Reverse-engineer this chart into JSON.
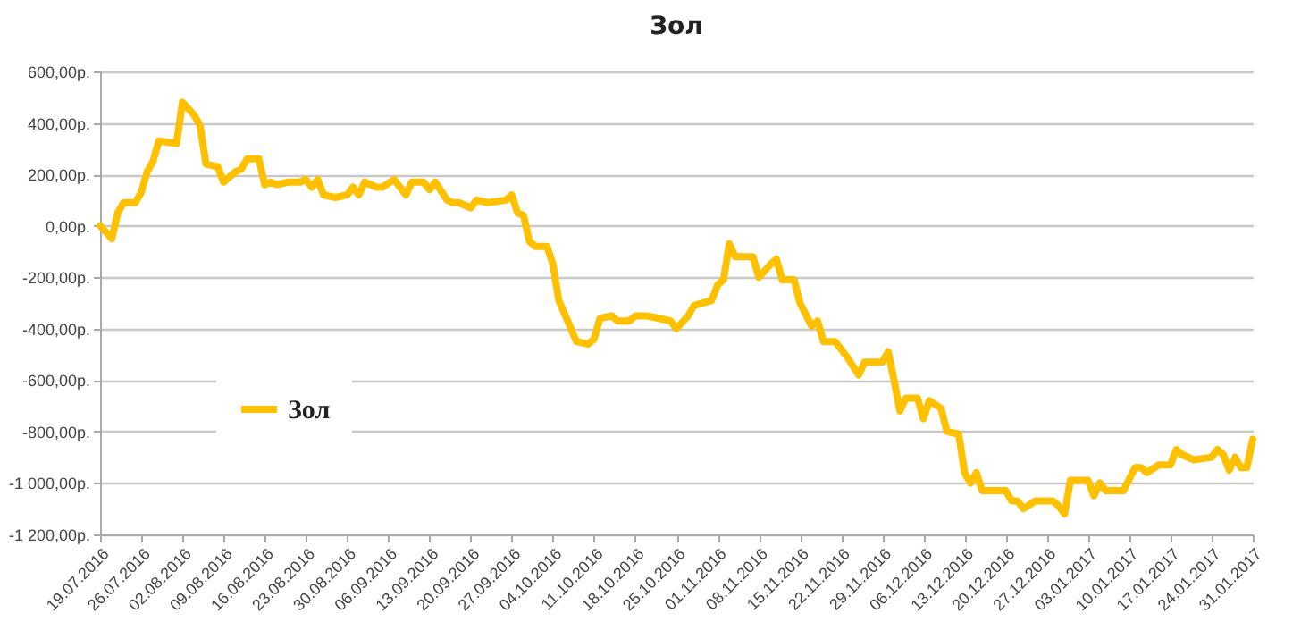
{
  "chart_data": {
    "type": "line",
    "title": "Зол",
    "legend": "left",
    "grid": "y",
    "marker": "none",
    "line_style": "solid",
    "x": [
      "2016-07-19",
      "2016-07-21",
      "2016-07-22",
      "2016-07-23",
      "2016-07-25",
      "2016-07-26",
      "2016-07-27",
      "2016-07-28",
      "2016-07-29",
      "2016-08-01",
      "2016-08-02",
      "2016-08-04",
      "2016-08-05",
      "2016-08-06",
      "2016-08-08",
      "2016-08-09",
      "2016-08-11",
      "2016-08-12",
      "2016-08-13",
      "2016-08-15",
      "2016-08-16",
      "2016-08-17",
      "2016-08-18",
      "2016-08-20",
      "2016-08-22",
      "2016-08-23",
      "2016-08-24",
      "2016-08-25",
      "2016-08-26",
      "2016-08-28",
      "2016-08-30",
      "2016-08-31",
      "2016-09-01",
      "2016-09-02",
      "2016-09-04",
      "2016-09-05",
      "2016-09-07",
      "2016-09-09",
      "2016-09-10",
      "2016-09-12",
      "2016-09-13",
      "2016-09-14",
      "2016-09-16",
      "2016-09-17",
      "2016-09-18",
      "2016-09-20",
      "2016-09-21",
      "2016-09-23",
      "2016-09-26",
      "2016-09-27",
      "2016-09-28",
      "2016-09-29",
      "2016-09-30",
      "2016-10-01",
      "2016-10-03",
      "2016-10-04",
      "2016-10-05",
      "2016-10-08",
      "2016-10-10",
      "2016-10-11",
      "2016-10-12",
      "2016-10-14",
      "2016-10-15",
      "2016-10-17",
      "2016-10-18",
      "2016-10-20",
      "2016-10-22",
      "2016-10-24",
      "2016-10-25",
      "2016-10-27",
      "2016-10-28",
      "2016-10-31",
      "2016-11-01",
      "2016-11-02",
      "2016-11-03",
      "2016-11-04",
      "2016-11-07",
      "2016-11-08",
      "2016-11-10",
      "2016-11-11",
      "2016-11-12",
      "2016-11-14",
      "2016-11-15",
      "2016-11-17",
      "2016-11-18",
      "2016-11-19",
      "2016-11-21",
      "2016-11-23",
      "2016-11-25",
      "2016-11-26",
      "2016-11-29",
      "2016-11-30",
      "2016-12-01",
      "2016-12-02",
      "2016-12-03",
      "2016-12-05",
      "2016-12-06",
      "2016-12-07",
      "2016-12-09",
      "2016-12-10",
      "2016-12-12",
      "2016-12-13",
      "2016-12-14",
      "2016-12-15",
      "2016-12-16",
      "2016-12-20",
      "2016-12-21",
      "2016-12-22",
      "2016-12-23",
      "2016-12-25",
      "2016-12-28",
      "2016-12-29",
      "2016-12-30",
      "2016-12-31",
      "2017-01-03",
      "2017-01-04",
      "2017-01-05",
      "2017-01-06",
      "2017-01-09",
      "2017-01-11",
      "2017-01-12",
      "2017-01-13",
      "2017-01-15",
      "2017-01-17",
      "2017-01-18",
      "2017-01-19",
      "2017-01-21",
      "2017-01-24",
      "2017-01-25",
      "2017-01-26",
      "2017-01-27",
      "2017-01-28",
      "2017-01-29",
      "2017-01-30",
      "2017-01-31"
    ],
    "series": [
      {
        "name": "Зол",
        "color": "#ffc000",
        "values": [
          0,
          -50,
          50,
          90,
          90,
          130,
          210,
          250,
          330,
          320,
          480,
          430,
          390,
          240,
          230,
          170,
          210,
          220,
          260,
          260,
          160,
          170,
          160,
          170,
          170,
          180,
          150,
          180,
          120,
          110,
          120,
          150,
          120,
          170,
          150,
          150,
          180,
          120,
          170,
          170,
          140,
          170,
          100,
          90,
          90,
          70,
          100,
          90,
          100,
          120,
          50,
          40,
          -60,
          -80,
          -80,
          -150,
          -290,
          -450,
          -460,
          -440,
          -360,
          -350,
          -370,
          -370,
          -350,
          -350,
          -360,
          -370,
          -400,
          -350,
          -310,
          -290,
          -230,
          -210,
          -70,
          -120,
          -120,
          -200,
          -150,
          -130,
          -210,
          -210,
          -300,
          -390,
          -370,
          -450,
          -450,
          -510,
          -580,
          -530,
          -530,
          -490,
          -600,
          -720,
          -670,
          -670,
          -750,
          -680,
          -710,
          -800,
          -810,
          -960,
          -1000,
          -960,
          -1030,
          -1030,
          -1070,
          -1070,
          -1100,
          -1070,
          -1070,
          -1090,
          -1120,
          -990,
          -990,
          -1050,
          -1000,
          -1030,
          -1030,
          -940,
          -940,
          -960,
          -930,
          -930,
          -870,
          -890,
          -910,
          -900,
          -870,
          -890,
          -950,
          -900,
          -940,
          -940,
          -830
        ]
      }
    ],
    "ylim": [
      -1200,
      600
    ],
    "yticks": [
      {
        "value": -1200,
        "label": "-1 200,00р."
      },
      {
        "value": -1000,
        "label": "-1 000,00р."
      },
      {
        "value": -800,
        "label": "-800,00р."
      },
      {
        "value": -600,
        "label": "-600,00р."
      },
      {
        "value": -400,
        "label": "-400,00р."
      },
      {
        "value": -200,
        "label": "-200,00р."
      },
      {
        "value": 0,
        "label": "0,00р."
      },
      {
        "value": 200,
        "label": "200,00р."
      },
      {
        "value": 400,
        "label": "400,00р."
      },
      {
        "value": 600,
        "label": "600,00р."
      }
    ],
    "xlim": [
      "2016-07-19",
      "2017-01-31"
    ],
    "xticks": [
      {
        "value": "2016-07-19",
        "label": "19.07.2016"
      },
      {
        "value": "2016-07-26",
        "label": "26.07.2016"
      },
      {
        "value": "2016-08-02",
        "label": "02.08.2016"
      },
      {
        "value": "2016-08-09",
        "label": "09.08.2016"
      },
      {
        "value": "2016-08-16",
        "label": "16.08.2016"
      },
      {
        "value": "2016-08-23",
        "label": "23.08.2016"
      },
      {
        "value": "2016-08-30",
        "label": "30.08.2016"
      },
      {
        "value": "2016-09-06",
        "label": "06.09.2016"
      },
      {
        "value": "2016-09-13",
        "label": "13.09.2016"
      },
      {
        "value": "2016-09-20",
        "label": "20.09.2016"
      },
      {
        "value": "2016-09-27",
        "label": "27.09.2016"
      },
      {
        "value": "2016-10-04",
        "label": "04.10.2016"
      },
      {
        "value": "2016-10-11",
        "label": "11.10.2016"
      },
      {
        "value": "2016-10-18",
        "label": "18.10.2016"
      },
      {
        "value": "2016-10-25",
        "label": "25.10.2016"
      },
      {
        "value": "2016-11-01",
        "label": "01.11.2016"
      },
      {
        "value": "2016-11-08",
        "label": "08.11.2016"
      },
      {
        "value": "2016-11-15",
        "label": "15.11.2016"
      },
      {
        "value": "2016-11-22",
        "label": "22.11.2016"
      },
      {
        "value": "2016-11-29",
        "label": "29.11.2016"
      },
      {
        "value": "2016-12-06",
        "label": "06.12.2016"
      },
      {
        "value": "2016-12-13",
        "label": "13.12.2016"
      },
      {
        "value": "2016-12-20",
        "label": "20.12.2016"
      },
      {
        "value": "2016-12-27",
        "label": "27.12.2016"
      },
      {
        "value": "2017-01-03",
        "label": "03.01.2017"
      },
      {
        "value": "2017-01-10",
        "label": "10.01.2017"
      },
      {
        "value": "2017-01-17",
        "label": "17.01.2017"
      },
      {
        "value": "2017-01-24",
        "label": "24.01.2017"
      },
      {
        "value": "2017-01-31",
        "label": "31.01.2017"
      }
    ]
  }
}
